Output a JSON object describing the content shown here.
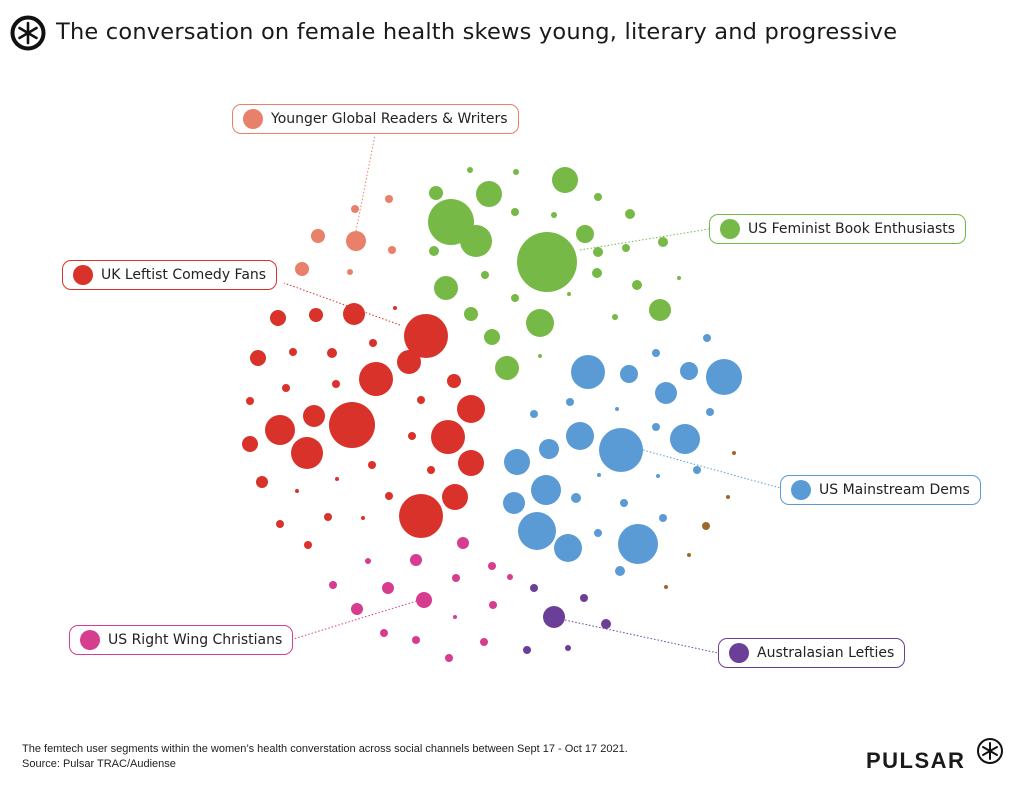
{
  "header": {
    "title": "The conversation on female health skews young, literary and progressive",
    "logo_icon": "pulsar-asterisk-icon"
  },
  "segments": [
    {
      "id": "orange",
      "label": "Younger Global Readers & Writers",
      "color": "#e8806a"
    },
    {
      "id": "green",
      "label": "US Feminist Book Enthusiasts",
      "color": "#76b947"
    },
    {
      "id": "red",
      "label": "UK Leftist Comedy Fans",
      "color": "#d9322a"
    },
    {
      "id": "blue",
      "label": "US Mainstream Dems",
      "color": "#5b9bd5"
    },
    {
      "id": "magenta",
      "label": "US Right Wing Christians",
      "color": "#d63d8e"
    },
    {
      "id": "purple",
      "label": "Australasian Lefties",
      "color": "#6b3f98"
    }
  ],
  "unlabeled_color": "#a0672a",
  "footer": {
    "note": "The femtech user segments within the women’s health converstation across social channels between Sept 17  - Oct 17 2021.",
    "source": "Source: Pulsar TRAC/Audiense",
    "brand": "PULSAR"
  }
}
